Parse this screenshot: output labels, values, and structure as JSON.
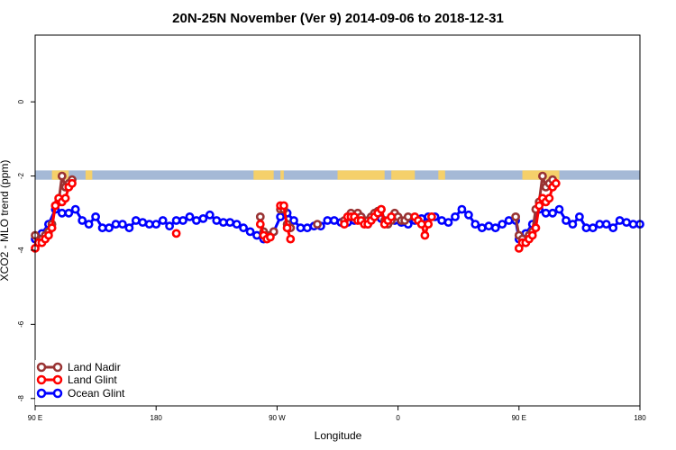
{
  "chart_data": {
    "type": "line",
    "title": "20N-25N November (Ver 9)   2014-09-06 to 2018-12-31",
    "xlabel": "Longitude",
    "ylabel": "XCO2 - MLO trend (ppm)",
    "xlim": [
      -90,
      270
    ],
    "ylim": [
      -8.2,
      1.8
    ],
    "x_ticks": [
      {
        "value": -90,
        "label": "90 E"
      },
      {
        "value": -18,
        "label": "180"
      },
      {
        "value": 54,
        "label": "90 W"
      },
      {
        "value": 126,
        "label": "0"
      },
      {
        "value": 198,
        "label": "90 E"
      },
      {
        "value": 270,
        "label": "180"
      }
    ],
    "y_ticks": [
      {
        "value": 0,
        "label": "0"
      },
      {
        "value": -2,
        "label": "-2"
      },
      {
        "value": -4,
        "label": "-4"
      },
      {
        "value": -6,
        "label": "-6"
      },
      {
        "value": -8,
        "label": "-8"
      }
    ],
    "band": {
      "y_low": -2.1,
      "y_high": -1.85,
      "ocean_color": "#a5b9d6",
      "land_color": "#f5d06a"
    },
    "legend_position": "bottom-left",
    "series": [
      {
        "name": "Land Nadir",
        "color": "#993333",
        "segments": [
          [
            [
              -90,
              -3.6
            ],
            [
              -88,
              -3.8
            ],
            [
              -86,
              -3.7
            ],
            [
              -84,
              -3.6
            ],
            [
              -82,
              -3.5
            ],
            [
              -80,
              -3.3
            ],
            [
              -78,
              -2.8
            ],
            [
              -76,
              -2.7
            ],
            [
              -74,
              -2.0
            ],
            [
              -72,
              -2.3
            ],
            [
              -70,
              -2.2
            ],
            [
              -68,
              -2.1
            ]
          ],
          [
            [
              44,
              -3.1
            ],
            [
              46,
              -3.5
            ],
            [
              48,
              -3.6
            ],
            [
              50,
              -3.6
            ],
            [
              52,
              -3.5
            ]
          ],
          [
            [
              56,
              -2.9
            ],
            [
              58,
              -2.9
            ],
            [
              60,
              -3.3
            ],
            [
              62,
              -3.4
            ]
          ],
          [
            [
              78,
              -3.3
            ]
          ],
          [
            [
              94,
              -3.2
            ],
            [
              96,
              -3.1
            ],
            [
              98,
              -3.0
            ],
            [
              100,
              -3.1
            ],
            [
              102,
              -3.0
            ],
            [
              104,
              -3.1
            ],
            [
              106,
              -3.2
            ],
            [
              108,
              -3.2
            ],
            [
              110,
              -3.1
            ],
            [
              112,
              -3.0
            ],
            [
              114,
              -2.95
            ],
            [
              116,
              -2.9
            ],
            [
              118,
              -3.2
            ],
            [
              120,
              -3.3
            ],
            [
              122,
              -3.2
            ],
            [
              124,
              -3.0
            ],
            [
              126,
              -3.1
            ],
            [
              128,
              -3.2
            ],
            [
              130,
              -3.2
            ],
            [
              132,
              -3.1
            ]
          ],
          [
            [
              196,
              -3.1
            ],
            [
              198,
              -3.6
            ],
            [
              200,
              -3.7
            ],
            [
              202,
              -3.8
            ],
            [
              204,
              -3.6
            ],
            [
              206,
              -3.5
            ],
            [
              208,
              -2.9
            ],
            [
              210,
              -2.7
            ],
            [
              212,
              -2.0
            ],
            [
              214,
              -2.3
            ],
            [
              216,
              -2.2
            ],
            [
              218,
              -2.1
            ]
          ]
        ]
      },
      {
        "name": "Land Glint",
        "color": "#ff0000",
        "segments": [
          [
            [
              -90,
              -3.95
            ],
            [
              -88,
              -3.8
            ],
            [
              -86,
              -3.8
            ],
            [
              -84,
              -3.7
            ],
            [
              -82,
              -3.6
            ],
            [
              -80,
              -3.4
            ],
            [
              -78,
              -2.8
            ],
            [
              -76,
              -2.6
            ],
            [
              -74,
              -2.7
            ],
            [
              -72,
              -2.6
            ],
            [
              -70,
              -2.3
            ],
            [
              -68,
              -2.2
            ]
          ],
          [
            [
              -6,
              -3.55
            ]
          ],
          [
            [
              44,
              -3.3
            ],
            [
              46,
              -3.6
            ],
            [
              48,
              -3.7
            ],
            [
              50,
              -3.65
            ]
          ],
          [
            [
              56,
              -2.8
            ],
            [
              58,
              -2.8
            ],
            [
              60,
              -3.4
            ],
            [
              62,
              -3.7
            ]
          ],
          [
            [
              94,
              -3.3
            ],
            [
              96,
              -3.1
            ],
            [
              98,
              -3.1
            ],
            [
              100,
              -3.1
            ],
            [
              102,
              -3.2
            ],
            [
              104,
              -3.2
            ],
            [
              106,
              -3.3
            ],
            [
              108,
              -3.3
            ],
            [
              110,
              -3.2
            ],
            [
              112,
              -3.1
            ],
            [
              114,
              -3.0
            ],
            [
              116,
              -2.9
            ],
            [
              118,
              -3.3
            ],
            [
              120,
              -3.2
            ],
            [
              122,
              -3.1
            ]
          ],
          [
            [
              136,
              -3.1
            ],
            [
              138,
              -3.2
            ],
            [
              140,
              -3.3
            ],
            [
              142,
              -3.6
            ],
            [
              144,
              -3.3
            ],
            [
              146,
              -3.1
            ]
          ],
          [
            [
              198,
              -3.95
            ],
            [
              200,
              -3.8
            ],
            [
              202,
              -3.8
            ],
            [
              204,
              -3.7
            ],
            [
              206,
              -3.6
            ],
            [
              208,
              -3.4
            ],
            [
              210,
              -2.8
            ],
            [
              212,
              -2.6
            ],
            [
              214,
              -2.7
            ],
            [
              216,
              -2.6
            ],
            [
              218,
              -2.3
            ],
            [
              220,
              -2.2
            ]
          ]
        ]
      },
      {
        "name": "Ocean Glint",
        "color": "#0000ff",
        "segments": [
          [
            [
              -90,
              -3.7
            ],
            [
              -86,
              -3.55
            ],
            [
              -82,
              -3.3
            ],
            [
              -78,
              -2.9
            ],
            [
              -74,
              -3.0
            ],
            [
              -70,
              -3.0
            ],
            [
              -66,
              -2.9
            ],
            [
              -62,
              -3.2
            ],
            [
              -58,
              -3.3
            ],
            [
              -54,
              -3.1
            ],
            [
              -50,
              -3.4
            ],
            [
              -46,
              -3.4
            ],
            [
              -42,
              -3.3
            ],
            [
              -38,
              -3.3
            ],
            [
              -34,
              -3.4
            ],
            [
              -30,
              -3.2
            ],
            [
              -26,
              -3.25
            ],
            [
              -22,
              -3.3
            ],
            [
              -18,
              -3.3
            ],
            [
              -14,
              -3.2
            ],
            [
              -10,
              -3.35
            ],
            [
              -6,
              -3.2
            ],
            [
              -2,
              -3.2
            ],
            [
              2,
              -3.1
            ],
            [
              6,
              -3.2
            ],
            [
              10,
              -3.15
            ],
            [
              14,
              -3.05
            ],
            [
              18,
              -3.2
            ],
            [
              22,
              -3.25
            ],
            [
              26,
              -3.25
            ],
            [
              30,
              -3.3
            ],
            [
              34,
              -3.4
            ],
            [
              38,
              -3.5
            ],
            [
              42,
              -3.6
            ],
            [
              46,
              -3.7
            ],
            [
              50,
              -3.6
            ],
            [
              52,
              -3.5
            ],
            [
              56,
              -3.1
            ],
            [
              60,
              -3.0
            ],
            [
              64,
              -3.2
            ],
            [
              68,
              -3.4
            ],
            [
              72,
              -3.4
            ],
            [
              76,
              -3.35
            ],
            [
              80,
              -3.35
            ],
            [
              84,
              -3.2
            ],
            [
              88,
              -3.2
            ],
            [
              92,
              -3.25
            ],
            [
              96,
              -3.25
            ],
            [
              100,
              -3.2
            ],
            [
              104,
              -3.1
            ],
            [
              108,
              -3.3
            ],
            [
              112,
              -3.1
            ],
            [
              116,
              -3.15
            ],
            [
              120,
              -3.2
            ],
            [
              124,
              -3.2
            ],
            [
              128,
              -3.25
            ],
            [
              132,
              -3.3
            ],
            [
              136,
              -3.2
            ],
            [
              140,
              -3.15
            ],
            [
              144,
              -3.1
            ],
            [
              148,
              -3.1
            ],
            [
              152,
              -3.2
            ],
            [
              156,
              -3.25
            ],
            [
              160,
              -3.1
            ],
            [
              164,
              -2.9
            ],
            [
              168,
              -3.05
            ],
            [
              172,
              -3.3
            ],
            [
              176,
              -3.4
            ],
            [
              180,
              -3.35
            ],
            [
              184,
              -3.4
            ],
            [
              188,
              -3.3
            ],
            [
              192,
              -3.2
            ],
            [
              196,
              -3.2
            ],
            [
              198,
              -3.7
            ],
            [
              202,
              -3.55
            ],
            [
              206,
              -3.3
            ],
            [
              210,
              -2.9
            ],
            [
              214,
              -3.0
            ],
            [
              218,
              -3.0
            ],
            [
              222,
              -2.9
            ],
            [
              226,
              -3.2
            ],
            [
              230,
              -3.3
            ],
            [
              234,
              -3.1
            ],
            [
              238,
              -3.4
            ],
            [
              242,
              -3.4
            ],
            [
              246,
              -3.3
            ],
            [
              250,
              -3.3
            ],
            [
              254,
              -3.4
            ],
            [
              258,
              -3.2
            ],
            [
              262,
              -3.25
            ],
            [
              266,
              -3.3
            ],
            [
              270,
              -3.3
            ]
          ]
        ]
      }
    ]
  }
}
